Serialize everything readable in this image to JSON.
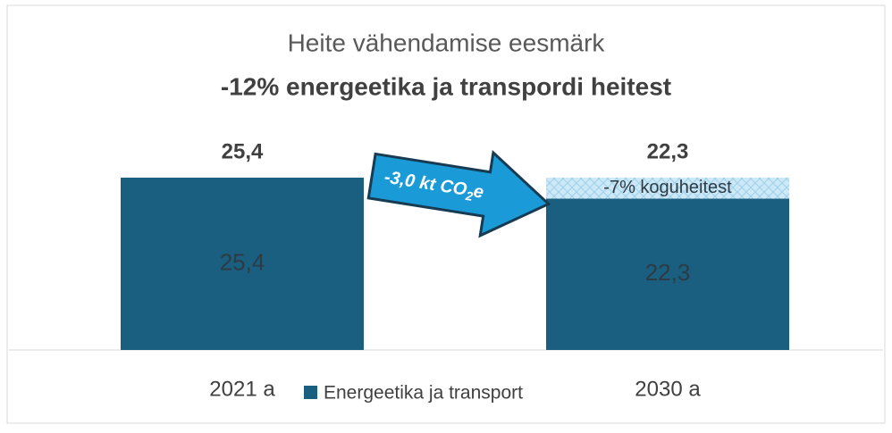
{
  "chart_data": {
    "type": "bar",
    "title": "Heite vähendamise eesmärk",
    "subtitle": "-12% energeetika ja transpordi heitest",
    "categories": [
      "2021 a",
      "2030 a"
    ],
    "series": [
      {
        "name": "Energeetika ja transport",
        "color": "#1a5e80",
        "values": [
          25.4,
          22.3
        ],
        "value_labels": [
          "25,4",
          "22,3"
        ]
      }
    ],
    "reduction": {
      "values": [
        null,
        3.1
      ],
      "label": "-7% koguheitest",
      "color": "#cde8f6"
    },
    "annotation": {
      "text": "-3,0 kt CO",
      "subscript": "2",
      "suffix": "e"
    },
    "ylim": [
      0,
      30
    ],
    "legend": "bottom"
  }
}
